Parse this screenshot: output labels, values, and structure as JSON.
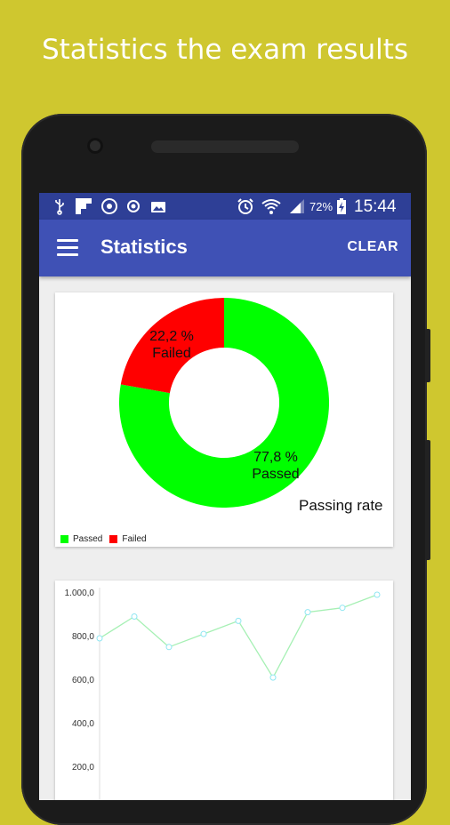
{
  "promo": {
    "title": "Statistics the exam results"
  },
  "status_bar": {
    "battery": "72%",
    "time": "15:44"
  },
  "app_bar": {
    "title": "Statistics",
    "action": "CLEAR"
  },
  "chart_data": [
    {
      "type": "pie",
      "center_text": "Passing rate",
      "slices": [
        {
          "name": "Passed",
          "value": 77.8,
          "label": "77,8 %",
          "color": "#00ff00"
        },
        {
          "name": "Failed",
          "value": 22.2,
          "label": "22,2 %",
          "color": "#ff0000"
        }
      ],
      "legend": [
        "Passed",
        "Failed"
      ],
      "legend_position": "bottom-left"
    },
    {
      "type": "line",
      "x": [
        1,
        2,
        3,
        4,
        5,
        6,
        7,
        8,
        9
      ],
      "values": [
        800,
        900,
        760,
        820,
        880,
        620,
        920,
        940,
        1000
      ],
      "yticks": [
        "1.000,0",
        "800,0",
        "600,0",
        "400,0",
        "200,0"
      ],
      "ylim": [
        0,
        1000
      ],
      "color": "#a6f0b4",
      "point_color": "#8fe6f2",
      "grid": false
    }
  ]
}
